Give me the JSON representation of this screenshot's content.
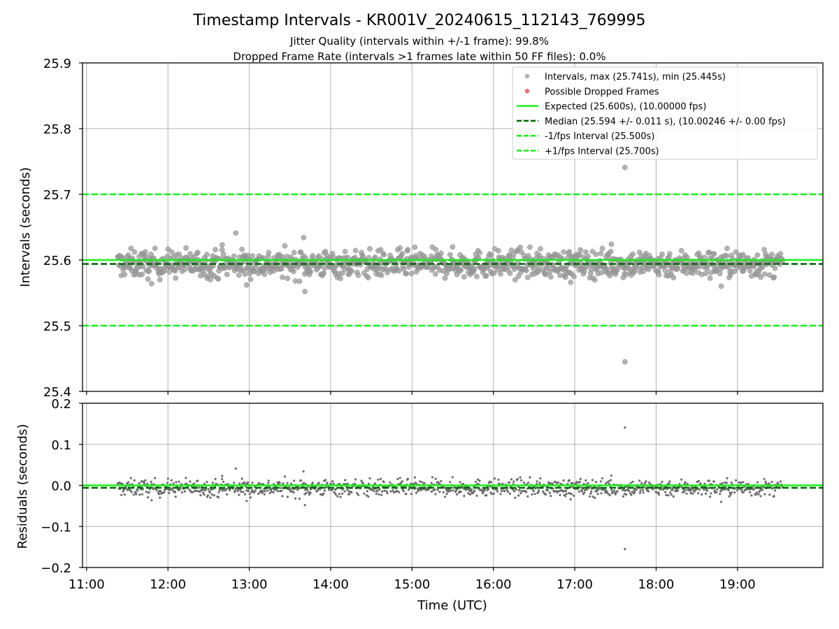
{
  "title": "Timestamp Intervals - KR001V_20240615_112143_769995",
  "subtitle_1": "Jitter Quality (intervals within +/-1 frame): 99.8%",
  "subtitle_2": "Dropped Frame Rate (intervals >1 frames late within 50 FF files): 0.0%",
  "chart_data": [
    {
      "type": "scatter",
      "ylabel": "Intervals (seconds)",
      "ylim": [
        25.4,
        25.9
      ],
      "yticks": [
        "25.4",
        "25.5",
        "25.6",
        "25.7",
        "25.8",
        "25.9"
      ],
      "xlim_hours": [
        10.95,
        20.05
      ],
      "grid": true,
      "legend_placement": "top-right",
      "reference_lines": {
        "expected": 25.6,
        "median": 25.594,
        "minus_1fps": 25.5,
        "plus_1fps": 25.7
      },
      "series": [
        {
          "name": "Intervals, max (25.741s), min (25.445s)",
          "color": "#9a9a9a",
          "x_range": [
            "11:23",
            "19:33"
          ],
          "count": 1150,
          "median": 25.594,
          "std": 0.011,
          "outliers": [
            {
              "x": "17:37",
              "y": 25.741
            },
            {
              "x": "17:37",
              "y": 25.445
            },
            {
              "x": "12:50",
              "y": 25.641
            },
            {
              "x": "13:40",
              "y": 25.634
            },
            {
              "x": "13:41",
              "y": 25.552
            },
            {
              "x": "12:40",
              "y": 25.623
            },
            {
              "x": "17:27",
              "y": 25.624
            },
            {
              "x": "18:48",
              "y": 25.56
            },
            {
              "x": "16:57",
              "y": 25.566
            },
            {
              "x": "12:58",
              "y": 25.562
            },
            {
              "x": "11:48",
              "y": 25.564
            }
          ]
        },
        {
          "name": "Possible Dropped Frames",
          "color": "#e8323c",
          "values": []
        }
      ],
      "legend": [
        {
          "label": "Intervals, max (25.741s), min (25.445s)",
          "marker": "dot",
          "color": "#9a9a9a"
        },
        {
          "label": "Possible Dropped Frames",
          "marker": "dot",
          "color": "#e8323c"
        },
        {
          "label": "Expected (25.600s), (10.00000 fps)",
          "marker": "solid",
          "color": "#1aee1a"
        },
        {
          "label": "Median (25.594 +/- 0.011 s), (10.00246 +/- 0.00 fps)",
          "marker": "dashed",
          "color": "#006400"
        },
        {
          "label": "-1/fps Interval (25.500s)",
          "marker": "dashed",
          "color": "#1aee1a"
        },
        {
          "label": "+1/fps Interval (25.700s)",
          "marker": "dashed",
          "color": "#1aee1a"
        }
      ]
    },
    {
      "type": "scatter",
      "ylabel": "Residuals (seconds)",
      "ylim": [
        -0.2,
        0.2
      ],
      "yticks": [
        "−0.2",
        "−0.1",
        "0.0",
        "0.1",
        "0.2"
      ],
      "xlabel": "Time (UTC)",
      "xticks": [
        "11:00",
        "12:00",
        "13:00",
        "14:00",
        "15:00",
        "16:00",
        "17:00",
        "18:00",
        "19:00"
      ],
      "xlim_hours": [
        10.95,
        20.05
      ],
      "grid": true,
      "reference_lines": {
        "zero": 0.0,
        "median_residual": -0.006
      },
      "series": [
        {
          "name": "Residuals",
          "color": "#6a6a6a",
          "x_range": [
            "11:23",
            "19:33"
          ],
          "count": 1150,
          "std": 0.011,
          "outliers": [
            {
              "x": "17:37",
              "y": 0.141
            },
            {
              "x": "17:37",
              "y": -0.155
            },
            {
              "x": "12:50",
              "y": 0.041
            },
            {
              "x": "13:40",
              "y": 0.034
            },
            {
              "x": "13:41",
              "y": -0.048
            }
          ]
        }
      ]
    }
  ],
  "colors": {
    "expected": "#1aee1a",
    "median": "#006400",
    "interval_points": "#9a9a9a",
    "residual_points": "#6a6a6a",
    "dropped": "#e8323c",
    "grid": "#b0b0b0"
  }
}
